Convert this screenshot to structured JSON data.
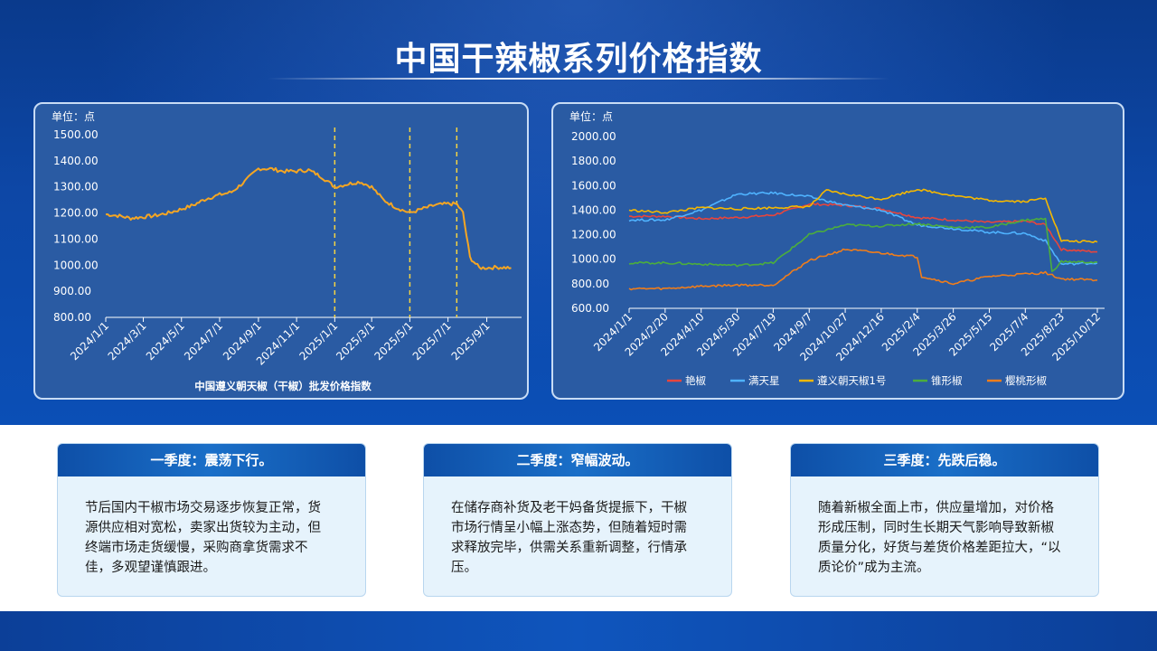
{
  "title": "中国干辣椒系列价格指数",
  "charts": {
    "left": {
      "unit": "单位：点",
      "xlabel": "中国遵义朝天椒（干椒）批发价格指数",
      "y_ticks": [
        "800.00",
        "900.00",
        "1000.00",
        "1100.00",
        "1200.00",
        "1300.00",
        "1400.00",
        "1500.00"
      ],
      "x_ticks": [
        "2024/1/1",
        "2024/3/1",
        "2024/5/1",
        "2024/7/1",
        "2024/9/1",
        "2024/11/1",
        "2025/1/1",
        "2025/3/1",
        "2025/5/1",
        "2025/7/1",
        "2025/9/1"
      ]
    },
    "right": {
      "unit": "单位：点",
      "y_ticks": [
        "600.00",
        "800.00",
        "1000.00",
        "1200.00",
        "1400.00",
        "1600.00",
        "1800.00",
        "2000.00"
      ],
      "x_ticks": [
        "2024/1/1",
        "2024/2/20",
        "2024/4/10",
        "2024/5/30",
        "2024/7/19",
        "2024/9/7",
        "2024/10/27",
        "2024/12/16",
        "2025/2/4",
        "2025/3/26",
        "2025/5/15",
        "2025/7/4",
        "2025/8/23",
        "2025/10/12"
      ]
    }
  },
  "chart_data": [
    {
      "type": "line",
      "title": "",
      "xlabel": "中国遵义朝天椒（干椒）批发价格指数",
      "ylabel": "单位：点",
      "ylim": [
        800,
        1500
      ],
      "x_ticks": [
        "2024/1/1",
        "2024/3/1",
        "2024/5/1",
        "2024/7/1",
        "2024/9/1",
        "2024/11/1",
        "2025/1/1",
        "2025/3/1",
        "2025/5/1",
        "2025/7/1",
        "2025/9/1"
      ],
      "vlines": [
        "2025/1/1",
        "2025/5/1",
        "2025/7/15"
      ],
      "vline_color": "#f5d442",
      "series": [
        {
          "color": "#f5a623",
          "x": [
            "2024/1/1",
            "2024/1/20",
            "2024/2/10",
            "2024/3/1",
            "2024/3/20",
            "2024/4/10",
            "2024/5/1",
            "2024/5/20",
            "2024/6/10",
            "2024/7/1",
            "2024/7/20",
            "2024/8/10",
            "2024/9/1",
            "2024/9/20",
            "2024/10/10",
            "2024/11/1",
            "2024/11/20",
            "2024/12/10",
            "2025/1/1",
            "2025/1/20",
            "2025/2/10",
            "2025/3/1",
            "2025/3/20",
            "2025/4/10",
            "2025/5/1",
            "2025/5/20",
            "2025/6/10",
            "2025/7/1",
            "2025/7/15",
            "2025/7/25",
            "2025/8/5",
            "2025/8/20",
            "2025/9/1",
            "2025/9/20",
            "2025/10/10"
          ],
          "values": [
            1195,
            1190,
            1180,
            1185,
            1190,
            1200,
            1215,
            1230,
            1255,
            1270,
            1280,
            1320,
            1370,
            1370,
            1360,
            1360,
            1365,
            1340,
            1300,
            1310,
            1320,
            1300,
            1250,
            1220,
            1200,
            1215,
            1230,
            1235,
            1235,
            1200,
            1030,
            990,
            990,
            992,
            990
          ]
        }
      ]
    },
    {
      "type": "line",
      "title": "",
      "ylabel": "单位：点",
      "ylim": [
        600,
        2000
      ],
      "x_ticks": [
        "2024/1/1",
        "2024/2/20",
        "2024/4/10",
        "2024/5/30",
        "2024/7/19",
        "2024/9/7",
        "2024/10/27",
        "2024/12/16",
        "2025/2/4",
        "2025/3/26",
        "2025/5/15",
        "2025/7/4",
        "2025/8/23",
        "2025/10/12"
      ],
      "series": [
        {
          "name": "艳椒",
          "color": "#e8453c",
          "x": [
            "2024/1/1",
            "2024/2/20",
            "2024/4/10",
            "2024/5/30",
            "2024/7/19",
            "2024/9/7",
            "2024/10/27",
            "2024/12/16",
            "2025/2/4",
            "2025/3/26",
            "2025/5/15",
            "2025/7/4",
            "2025/8/1",
            "2025/8/23",
            "2025/10/12"
          ],
          "values": [
            1350,
            1350,
            1330,
            1340,
            1360,
            1450,
            1440,
            1410,
            1340,
            1320,
            1300,
            1310,
            1280,
            1080,
            1060
          ]
        },
        {
          "name": "满天星",
          "color": "#4fb3ff",
          "x": [
            "2024/1/1",
            "2024/2/20",
            "2024/4/10",
            "2024/5/30",
            "2024/7/19",
            "2024/9/7",
            "2024/10/27",
            "2024/12/16",
            "2025/2/4",
            "2025/3/26",
            "2025/5/15",
            "2025/7/4",
            "2025/8/1",
            "2025/8/23",
            "2025/10/12"
          ],
          "values": [
            1320,
            1320,
            1400,
            1530,
            1540,
            1510,
            1440,
            1400,
            1280,
            1250,
            1220,
            1210,
            1150,
            960,
            970
          ]
        },
        {
          "name": "遵义朝天椒1号",
          "color": "#f5b800",
          "x": [
            "2024/1/1",
            "2024/2/20",
            "2024/4/10",
            "2024/5/30",
            "2024/7/19",
            "2024/9/7",
            "2024/10/1",
            "2024/10/27",
            "2024/12/16",
            "2025/2/4",
            "2025/3/26",
            "2025/5/15",
            "2025/7/4",
            "2025/8/1",
            "2025/8/23",
            "2025/10/12"
          ],
          "values": [
            1400,
            1380,
            1420,
            1410,
            1420,
            1430,
            1560,
            1530,
            1490,
            1570,
            1520,
            1480,
            1470,
            1500,
            1150,
            1140
          ]
        },
        {
          "name": "锥形椒",
          "color": "#4cae3c",
          "x": [
            "2024/1/1",
            "2024/2/20",
            "2024/4/10",
            "2024/5/30",
            "2024/7/19",
            "2024/9/7",
            "2024/10/27",
            "2024/12/16",
            "2025/2/4",
            "2025/3/26",
            "2025/5/15",
            "2025/7/4",
            "2025/8/1",
            "2025/8/10",
            "2025/8/23",
            "2025/10/12"
          ],
          "values": [
            970,
            970,
            960,
            950,
            970,
            1200,
            1280,
            1270,
            1290,
            1260,
            1260,
            1320,
            1330,
            900,
            980,
            975
          ]
        },
        {
          "name": "樱桃形椒",
          "color": "#f07d1a",
          "x": [
            "2024/1/1",
            "2024/2/20",
            "2024/4/10",
            "2024/5/30",
            "2024/7/19",
            "2024/9/7",
            "2024/10/27",
            "2024/12/16",
            "2025/2/4",
            "2025/2/10",
            "2025/3/26",
            "2025/5/15",
            "2025/7/4",
            "2025/8/1",
            "2025/8/23",
            "2025/10/12"
          ],
          "values": [
            760,
            760,
            780,
            790,
            790,
            990,
            1080,
            1050,
            1020,
            860,
            800,
            860,
            880,
            890,
            840,
            830
          ]
        }
      ]
    }
  ],
  "cards": [
    {
      "heading": "一季度：震荡下行。",
      "body": "节后国内干椒市场交易逐步恢复正常，货源供应相对宽松，卖家出货较为主动，但终端市场走货缓慢，采购商拿货需求不佳，多观望谨慎跟进。"
    },
    {
      "heading": "二季度：窄幅波动。",
      "body": "在储存商补货及老干妈备货提振下，干椒市场行情呈小幅上涨态势，但随着短时需求释放完毕，供需关系重新调整，行情承压。"
    },
    {
      "heading": "三季度：先跌后稳。",
      "body": "随着新椒全面上市，供应量增加，对价格形成压制，同时生长期天气影响导致新椒质量分化，好货与差货价格差距拉大，“以质论价”成为主流。"
    }
  ]
}
